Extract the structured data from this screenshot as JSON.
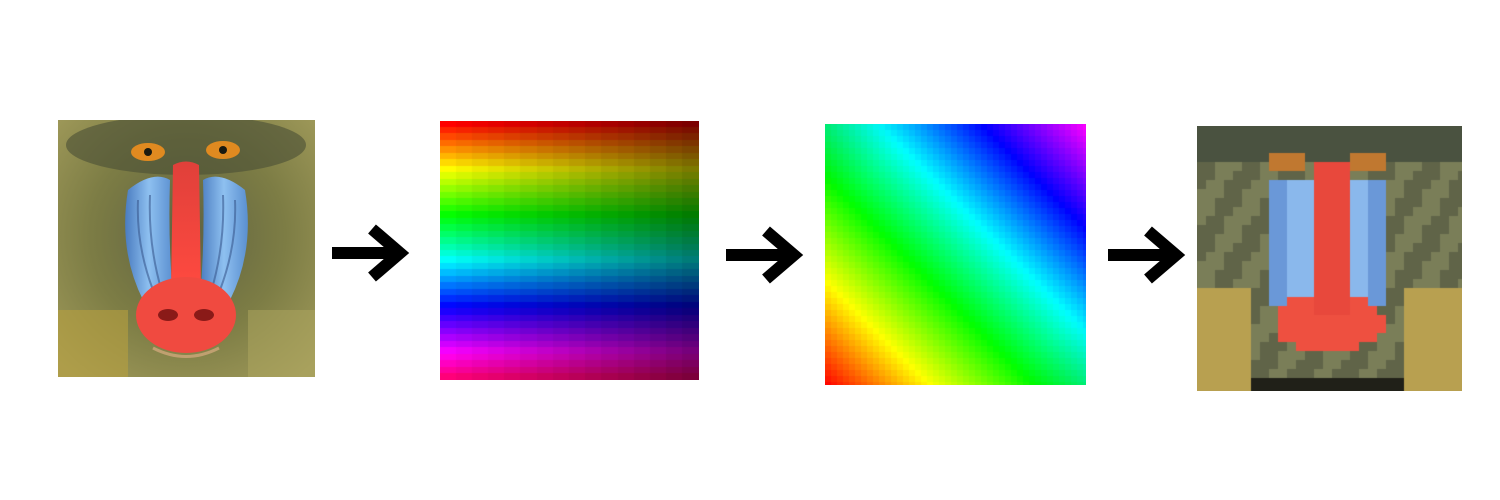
{
  "pipeline": [
    {
      "id": "original",
      "description_icon": "baboon-face-photo"
    },
    {
      "id": "horizontal-gradient",
      "description_icon": "horizontal-rainbow-bands"
    },
    {
      "id": "diagonal-gradient",
      "description_icon": "diagonal-rainbow-bands"
    },
    {
      "id": "pixelated",
      "description_icon": "pixelated-baboon-face"
    }
  ],
  "arrows": [
    "right-arrow-icon",
    "right-arrow-icon",
    "right-arrow-icon"
  ],
  "colors": {
    "background": "#ffffff",
    "arrow": "#000000",
    "fur": "#7a7a3a",
    "cheek_blue": "#6ea8e0",
    "nose_red": "#f0453a",
    "eye_orange": "#e08a20"
  }
}
